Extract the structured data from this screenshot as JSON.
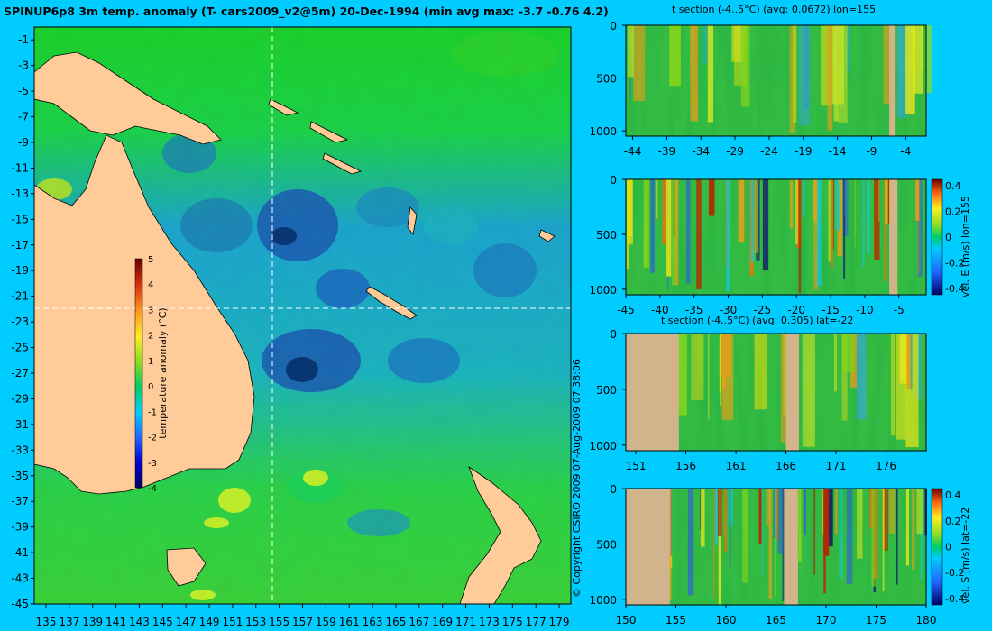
{
  "title": "SPINUP6p8 3m temp. anomaly (T- cars2009_v2@5m) 20-Dec-1994 (min avg max: -3.7 -0.76 4.2)",
  "copyright": "© Copyright CSIRO 2009   07-Aug-2009 07:38:06",
  "colors": {
    "background": "#00ccff",
    "land": "#ffcc99",
    "section_land": "#d2b48c",
    "crosshair": "#ffffff"
  },
  "chart_data": [
    {
      "type": "heatmap",
      "name": "map",
      "title": "SPINUP6p8 3m temp. anomaly (T- cars2009_v2@5m) 20-Dec-1994 (min avg max: -3.7 -0.76 4.2)",
      "xlim": [
        134,
        180
      ],
      "ylim": [
        -45,
        0
      ],
      "x_ticks": [
        "135",
        "137",
        "139",
        "141",
        "143",
        "145",
        "147",
        "149",
        "151",
        "153",
        "155",
        "157",
        "159",
        "161",
        "163",
        "165",
        "167",
        "169",
        "171",
        "173",
        "175",
        "177",
        "179"
      ],
      "y_ticks": [
        "-1",
        "-3",
        "-5",
        "-7",
        "-9",
        "-11",
        "-13",
        "-15",
        "-17",
        "-19",
        "-21",
        "-23",
        "-25",
        "-27",
        "-29",
        "-31",
        "-33",
        "-35",
        "-37",
        "-39",
        "-41",
        "-43",
        "-45"
      ],
      "crosshair": {
        "lon": 155,
        "lat": -22
      },
      "colorbar": {
        "label": "temperature anomaly (°C)",
        "ticks": [
          "5",
          "4",
          "3",
          "2",
          "1",
          "0",
          "-1",
          "-2",
          "-3",
          "-4"
        ],
        "range": [
          -4,
          5
        ]
      }
    },
    {
      "type": "heatmap",
      "name": "section1",
      "title": "t section (-4..5°C) (avg: 0.0672) lon=155",
      "xlim": [
        -45,
        -1
      ],
      "ylim": [
        1050,
        0
      ],
      "x_ticks": [
        "-44",
        "-39",
        "-34",
        "-29",
        "-24",
        "-19",
        "-14",
        "-9",
        "-4"
      ],
      "y_ticks": [
        "0",
        "500",
        "1000"
      ]
    },
    {
      "type": "heatmap",
      "name": "section2",
      "title": "",
      "xlim": [
        -45,
        -1
      ],
      "ylim": [
        1050,
        0
      ],
      "x_ticks": [
        "-45",
        "-40",
        "-35",
        "-30",
        "-25",
        "-20",
        "-15",
        "-10",
        "-5"
      ],
      "y_ticks": [
        "0",
        "500",
        "1000"
      ],
      "colorbar": {
        "label": "vel. E (m/s) lon=155",
        "ticks": [
          "0.4",
          "0.2",
          "0",
          "-0.2",
          "-0.4"
        ],
        "range": [
          -0.45,
          0.45
        ]
      }
    },
    {
      "type": "heatmap",
      "name": "section3",
      "title": "t section (-4..5°C) (avg: 0.305) lat=-22",
      "xlim": [
        150,
        180
      ],
      "ylim": [
        1050,
        0
      ],
      "x_ticks": [
        "151",
        "156",
        "161",
        "166",
        "171",
        "176"
      ],
      "y_ticks": [
        "0",
        "500",
        "1000"
      ]
    },
    {
      "type": "heatmap",
      "name": "section4",
      "title": "",
      "xlim": [
        150,
        180
      ],
      "ylim": [
        1050,
        0
      ],
      "x_ticks": [
        "150",
        "155",
        "160",
        "165",
        "170",
        "175",
        "180"
      ],
      "y_ticks": [
        "0",
        "500",
        "1000"
      ],
      "colorbar": {
        "label": "vel. S (m/s) lat=-22",
        "ticks": [
          "0.4",
          "0.2",
          "0",
          "-0.2",
          "-0.4"
        ],
        "range": [
          -0.45,
          0.45
        ]
      }
    }
  ]
}
